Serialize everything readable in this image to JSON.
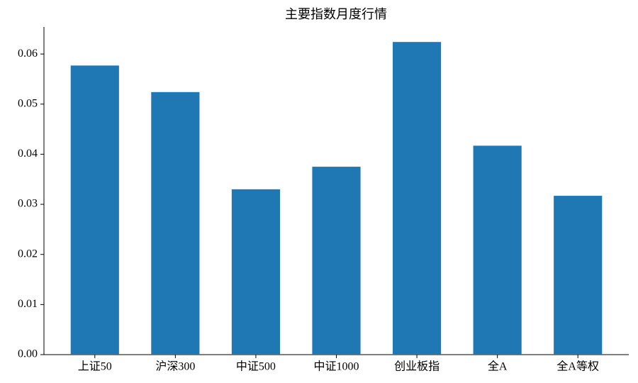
{
  "chart_data": {
    "type": "bar",
    "title": "主要指数月度行情",
    "categories": [
      "上证50",
      "沪深300",
      "中证500",
      "中证1000",
      "创业板指",
      "全A",
      "全A等权"
    ],
    "values": [
      0.0577,
      0.0524,
      0.033,
      0.0375,
      0.0624,
      0.0417,
      0.0317
    ],
    "color": "#1f77b4",
    "ylim": [
      0,
      0.0654
    ],
    "yticks": [
      {
        "value": 0,
        "label": "0.00"
      },
      0.01,
      0.02,
      0.03,
      0.04,
      0.05,
      0.06
    ],
    "grid": false
  }
}
